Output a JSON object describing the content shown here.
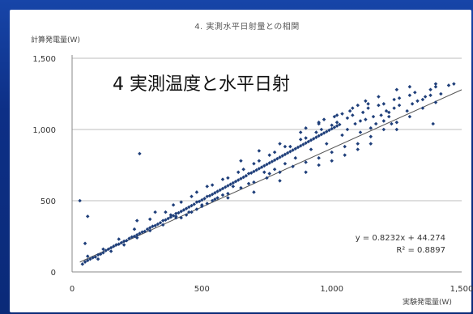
{
  "chart_data": {
    "type": "scatter",
    "title": "4. 実測水平日射量との相関",
    "overlay_title": "4 実測温度と水平日射",
    "ylabel": "計算発電量(W)",
    "xlabel": "実験発電量(W)",
    "xlim": [
      0,
      1500
    ],
    "ylim": [
      0,
      1500
    ],
    "xticks": [
      "0",
      "500",
      "1,000",
      "1,500"
    ],
    "yticks": [
      "0",
      "500",
      "1,000",
      "1,500"
    ],
    "grid": true,
    "trendline": {
      "slope": 0.8232,
      "intercept": 44.274,
      "equation": "y = 0.8232x + 44.274",
      "r2": "R² = 0.8897"
    },
    "series": [
      {
        "color": "#1f3f7a",
        "points": [
          [
            40,
            55
          ],
          [
            50,
            70
          ],
          [
            60,
            80
          ],
          [
            70,
            90
          ],
          [
            80,
            100
          ],
          [
            90,
            105
          ],
          [
            100,
            120
          ],
          [
            110,
            125
          ],
          [
            120,
            135
          ],
          [
            130,
            150
          ],
          [
            140,
            160
          ],
          [
            150,
            170
          ],
          [
            160,
            180
          ],
          [
            170,
            190
          ],
          [
            180,
            195
          ],
          [
            190,
            205
          ],
          [
            200,
            215
          ],
          [
            210,
            220
          ],
          [
            220,
            235
          ],
          [
            230,
            245
          ],
          [
            240,
            250
          ],
          [
            250,
            260
          ],
          [
            260,
            270
          ],
          [
            270,
            280
          ],
          [
            280,
            285
          ],
          [
            290,
            300
          ],
          [
            300,
            310
          ],
          [
            310,
            320
          ],
          [
            320,
            325
          ],
          [
            330,
            335
          ],
          [
            340,
            345
          ],
          [
            350,
            360
          ],
          [
            360,
            365
          ],
          [
            370,
            375
          ],
          [
            380,
            385
          ],
          [
            390,
            395
          ],
          [
            400,
            410
          ],
          [
            410,
            415
          ],
          [
            420,
            425
          ],
          [
            430,
            435
          ],
          [
            440,
            445
          ],
          [
            450,
            455
          ],
          [
            460,
            465
          ],
          [
            470,
            475
          ],
          [
            480,
            490
          ],
          [
            490,
            495
          ],
          [
            500,
            505
          ],
          [
            510,
            515
          ],
          [
            520,
            530
          ],
          [
            530,
            535
          ],
          [
            540,
            545
          ],
          [
            550,
            555
          ],
          [
            560,
            565
          ],
          [
            570,
            575
          ],
          [
            580,
            585
          ],
          [
            590,
            595
          ],
          [
            600,
            605
          ],
          [
            610,
            615
          ],
          [
            620,
            625
          ],
          [
            630,
            635
          ],
          [
            640,
            645
          ],
          [
            650,
            655
          ],
          [
            660,
            665
          ],
          [
            670,
            675
          ],
          [
            680,
            690
          ],
          [
            690,
            695
          ],
          [
            700,
            705
          ],
          [
            710,
            715
          ],
          [
            720,
            725
          ],
          [
            730,
            735
          ],
          [
            740,
            745
          ],
          [
            750,
            755
          ],
          [
            760,
            765
          ],
          [
            770,
            775
          ],
          [
            780,
            785
          ],
          [
            790,
            795
          ],
          [
            800,
            805
          ],
          [
            810,
            815
          ],
          [
            820,
            825
          ],
          [
            830,
            835
          ],
          [
            840,
            845
          ],
          [
            850,
            855
          ],
          [
            860,
            865
          ],
          [
            870,
            875
          ],
          [
            880,
            885
          ],
          [
            890,
            895
          ],
          [
            900,
            905
          ],
          [
            910,
            915
          ],
          [
            920,
            925
          ],
          [
            930,
            935
          ],
          [
            940,
            945
          ],
          [
            950,
            955
          ],
          [
            960,
            965
          ],
          [
            970,
            975
          ],
          [
            980,
            985
          ],
          [
            990,
            995
          ],
          [
            1000,
            1005
          ],
          [
            1010,
            1015
          ],
          [
            1020,
            1025
          ],
          [
            1030,
            1035
          ],
          [
            100,
            90
          ],
          [
            150,
            145
          ],
          [
            200,
            190
          ],
          [
            250,
            240
          ],
          [
            300,
            290
          ],
          [
            350,
            330
          ],
          [
            400,
            380
          ],
          [
            450,
            420
          ],
          [
            500,
            470
          ],
          [
            550,
            510
          ],
          [
            600,
            550
          ],
          [
            650,
            590
          ],
          [
            700,
            630
          ],
          [
            750,
            660
          ],
          [
            800,
            700
          ],
          [
            850,
            740
          ],
          [
            900,
            770
          ],
          [
            950,
            800
          ],
          [
            1000,
            840
          ],
          [
            1050,
            880
          ],
          [
            1100,
            900
          ],
          [
            1150,
            950
          ],
          [
            1200,
            1000
          ],
          [
            1250,
            1050
          ],
          [
            1300,
            1090
          ],
          [
            1350,
            1150
          ],
          [
            1400,
            1190
          ],
          [
            60,
            110
          ],
          [
            120,
            160
          ],
          [
            180,
            230
          ],
          [
            240,
            300
          ],
          [
            300,
            370
          ],
          [
            360,
            420
          ],
          [
            420,
            490
          ],
          [
            480,
            560
          ],
          [
            540,
            610
          ],
          [
            600,
            660
          ],
          [
            660,
            720
          ],
          [
            720,
            780
          ],
          [
            780,
            840
          ],
          [
            840,
            880
          ],
          [
            900,
            940
          ],
          [
            960,
            1000
          ],
          [
            1020,
            1050
          ],
          [
            1080,
            1100
          ],
          [
            1140,
            1150
          ],
          [
            1200,
            1180
          ],
          [
            1260,
            1220
          ],
          [
            1320,
            1260
          ],
          [
            1380,
            1280
          ],
          [
            250,
            360
          ],
          [
            320,
            420
          ],
          [
            390,
            470
          ],
          [
            460,
            530
          ],
          [
            520,
            600
          ],
          [
            580,
            650
          ],
          [
            640,
            700
          ],
          [
            700,
            760
          ],
          [
            760,
            820
          ],
          [
            820,
            880
          ],
          [
            880,
            930
          ],
          [
            940,
            980
          ],
          [
            1000,
            1030
          ],
          [
            1060,
            1080
          ],
          [
            1120,
            1120
          ],
          [
            1180,
            1170
          ],
          [
            1240,
            1210
          ],
          [
            1300,
            1240
          ],
          [
            600,
            520
          ],
          [
            700,
            560
          ],
          [
            800,
            640
          ],
          [
            900,
            700
          ],
          [
            1000,
            780
          ],
          [
            1100,
            860
          ],
          [
            1150,
            900
          ],
          [
            1050,
            820
          ],
          [
            950,
            750
          ],
          [
            650,
            780
          ],
          [
            720,
            850
          ],
          [
            800,
            900
          ],
          [
            880,
            980
          ],
          [
            950,
            1050
          ],
          [
            1020,
            1100
          ],
          [
            1080,
            1150
          ],
          [
            1140,
            1180
          ],
          [
            1180,
            1230
          ],
          [
            1250,
            1280
          ],
          [
            1300,
            1300
          ],
          [
            1400,
            1300
          ],
          [
            1450,
            1310
          ],
          [
            1350,
            1210
          ],
          [
            1420,
            1250
          ],
          [
            400,
            390
          ],
          [
            420,
            380
          ],
          [
            440,
            400
          ],
          [
            460,
            420
          ],
          [
            480,
            440
          ],
          [
            500,
            460
          ],
          [
            520,
            480
          ],
          [
            540,
            500
          ],
          [
            560,
            520
          ],
          [
            580,
            540
          ],
          [
            620,
            600
          ],
          [
            680,
            620
          ],
          [
            740,
            700
          ],
          [
            760,
            690
          ],
          [
            780,
            720
          ],
          [
            820,
            760
          ],
          [
            860,
            800
          ],
          [
            920,
            860
          ],
          [
            980,
            900
          ],
          [
            1040,
            960
          ],
          [
            1060,
            1000
          ],
          [
            1090,
            1040
          ],
          [
            1110,
            1060
          ],
          [
            1130,
            1070
          ],
          [
            1160,
            1090
          ],
          [
            1190,
            1100
          ],
          [
            1220,
            1120
          ],
          [
            1240,
            1150
          ],
          [
            1230,
            1040
          ],
          [
            1260,
            1170
          ],
          [
            1290,
            1130
          ],
          [
            1310,
            1180
          ],
          [
            1330,
            1200
          ],
          [
            1360,
            1230
          ],
          [
            1380,
            1240
          ],
          [
            900,
            1010
          ],
          [
            950,
            1040
          ],
          [
            970,
            1070
          ],
          [
            1010,
            1090
          ],
          [
            1040,
            1110
          ],
          [
            1070,
            1130
          ],
          [
            1100,
            1170
          ],
          [
            1130,
            1200
          ],
          [
            1110,
            980
          ],
          [
            1150,
            1010
          ],
          [
            1200,
            1060
          ],
          [
            1170,
            1040
          ],
          [
            1210,
            1130
          ],
          [
            1250,
            1000
          ],
          [
            30,
            500
          ],
          [
            60,
            390
          ],
          [
            260,
            830
          ],
          [
            380,
            400
          ],
          [
            1400,
            1320
          ],
          [
            1470,
            1320
          ],
          [
            1220,
            1090
          ],
          [
            50,
            200
          ],
          [
            1390,
            1040
          ]
        ]
      }
    ]
  }
}
